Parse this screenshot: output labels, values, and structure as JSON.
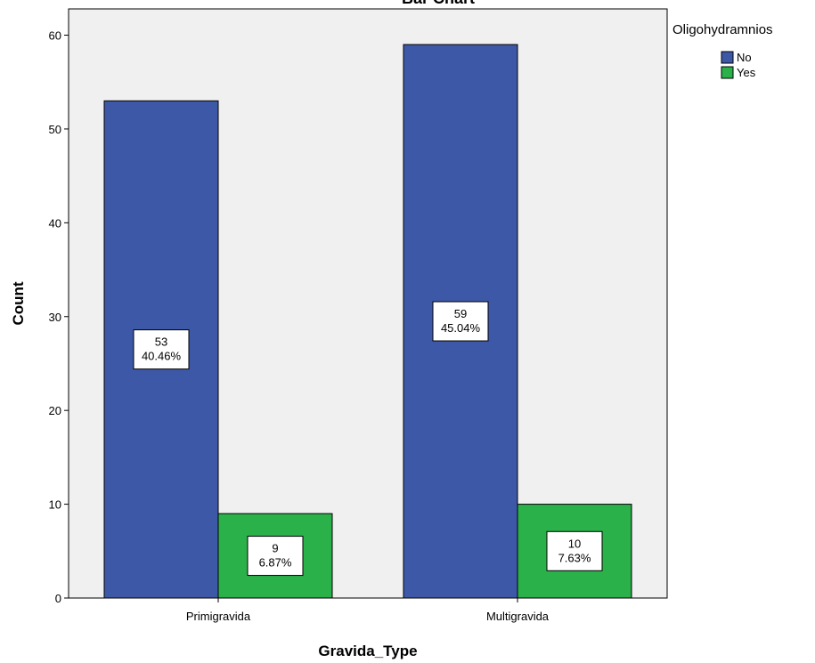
{
  "chart_data": {
    "type": "bar",
    "title": "Bar Chart",
    "xlabel": "Gravida_Type",
    "ylabel": "Count",
    "ylim": [
      0,
      62.8
    ],
    "yticks": [
      0,
      10,
      20,
      30,
      40,
      50,
      60
    ],
    "categories": [
      "Primigravida",
      "Multigravida"
    ],
    "legend": {
      "title": "Oligohydramnios",
      "placement": "right"
    },
    "series": [
      {
        "name": "No",
        "color": "#3e58a8",
        "values": [
          53,
          59
        ],
        "labels": [
          [
            "53",
            "40.46%"
          ],
          [
            "59",
            "45.04%"
          ]
        ]
      },
      {
        "name": "Yes",
        "color": "#2bb14a",
        "values": [
          9,
          10
        ],
        "labels": [
          [
            "9",
            "6.87%"
          ],
          [
            "10",
            "7.63%"
          ]
        ]
      }
    ],
    "background": "#f0f0f0",
    "grid": false
  }
}
